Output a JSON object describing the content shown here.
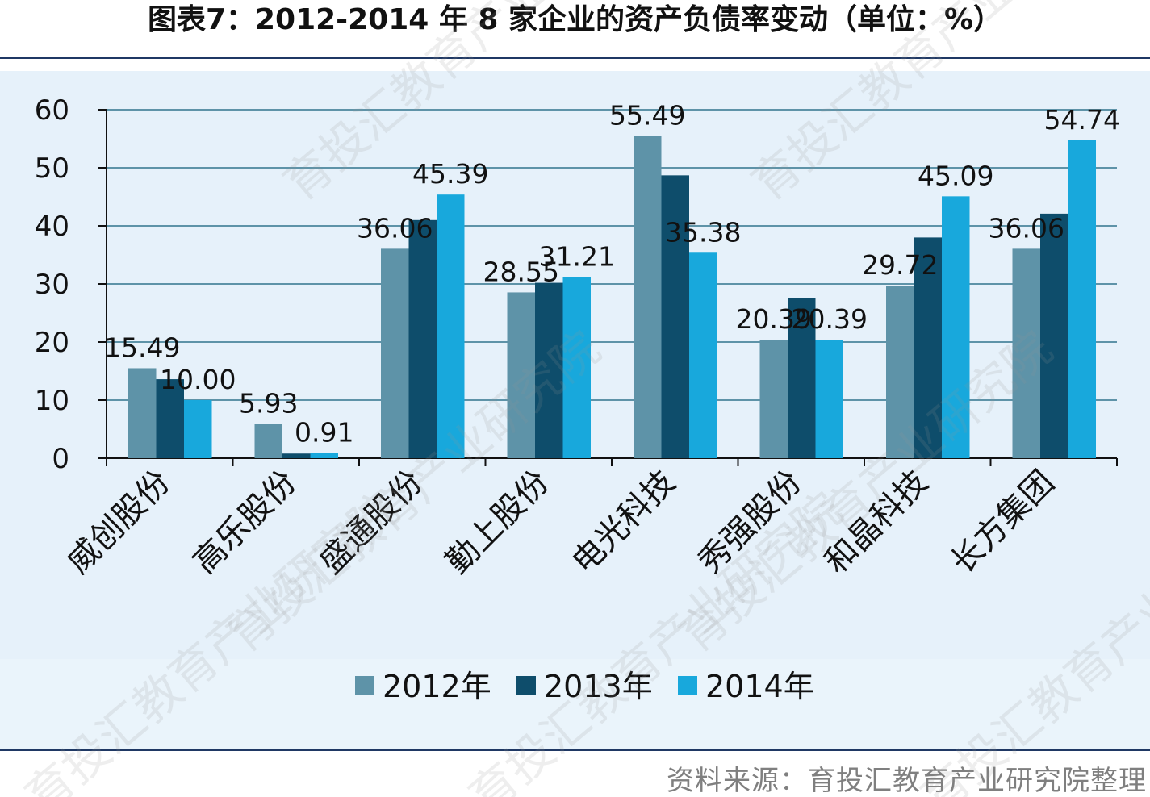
{
  "title": "图表7：2012-2014 年 8 家企业的资产负债率变动（单位：%）",
  "source": "资料来源：育投汇教育产业研究院整理",
  "watermark": "育投汇教育产业研究院",
  "colors": {
    "series": [
      "#5e93a8",
      "#0e4d6b",
      "#18a8dc"
    ],
    "grid": "#5e93a8",
    "axis": "#111111"
  },
  "chart_data": {
    "type": "bar",
    "categories": [
      "威创股份",
      "高乐股份",
      "盛通股份",
      "勤上股份",
      "电光科技",
      "秀强股份",
      "和晶科技",
      "长方集团"
    ],
    "series": [
      {
        "name": "2012年",
        "values": [
          15.49,
          5.93,
          36.06,
          28.55,
          55.49,
          20.39,
          29.72,
          36.06
        ]
      },
      {
        "name": "2013年",
        "values": [
          13.6,
          0.8,
          41.0,
          30.2,
          48.7,
          27.6,
          38.0,
          42.1
        ]
      },
      {
        "name": "2014年",
        "values": [
          10.0,
          0.91,
          45.39,
          31.21,
          35.38,
          20.39,
          45.09,
          54.74
        ]
      }
    ],
    "data_labels": [
      {
        "category": "威创股份",
        "series": "2012年",
        "text": "15.49"
      },
      {
        "category": "威创股份",
        "series": "2014年",
        "text": "10.00"
      },
      {
        "category": "高乐股份",
        "series": "2012年",
        "text": "5.93"
      },
      {
        "category": "高乐股份",
        "series": "2014年",
        "text": "0.91"
      },
      {
        "category": "盛通股份",
        "series": "2012年",
        "text": "36.06"
      },
      {
        "category": "盛通股份",
        "series": "2014年",
        "text": "45.39"
      },
      {
        "category": "勤上股份",
        "series": "2012年",
        "text": "28.55"
      },
      {
        "category": "勤上股份",
        "series": "2014年",
        "text": "31.21"
      },
      {
        "category": "电光科技",
        "series": "2012年",
        "text": "55.49"
      },
      {
        "category": "电光科技",
        "series": "2014年",
        "text": "35.38"
      },
      {
        "category": "秀强股份",
        "series": "2012年",
        "text": "20.39"
      },
      {
        "category": "秀强股份",
        "series": "2014年",
        "text": "20.39"
      },
      {
        "category": "和晶科技",
        "series": "2012年",
        "text": "29.72"
      },
      {
        "category": "和晶科技",
        "series": "2014年",
        "text": "45.09"
      },
      {
        "category": "长方集团",
        "series": "2012年",
        "text": "36.06"
      },
      {
        "category": "长方集团",
        "series": "2014年",
        "text": "54.74"
      }
    ],
    "yticks": [
      "0",
      "10",
      "20",
      "30",
      "40",
      "50",
      "60"
    ],
    "ylim": [
      0,
      60
    ],
    "grid": true,
    "legend_position": "bottom"
  }
}
